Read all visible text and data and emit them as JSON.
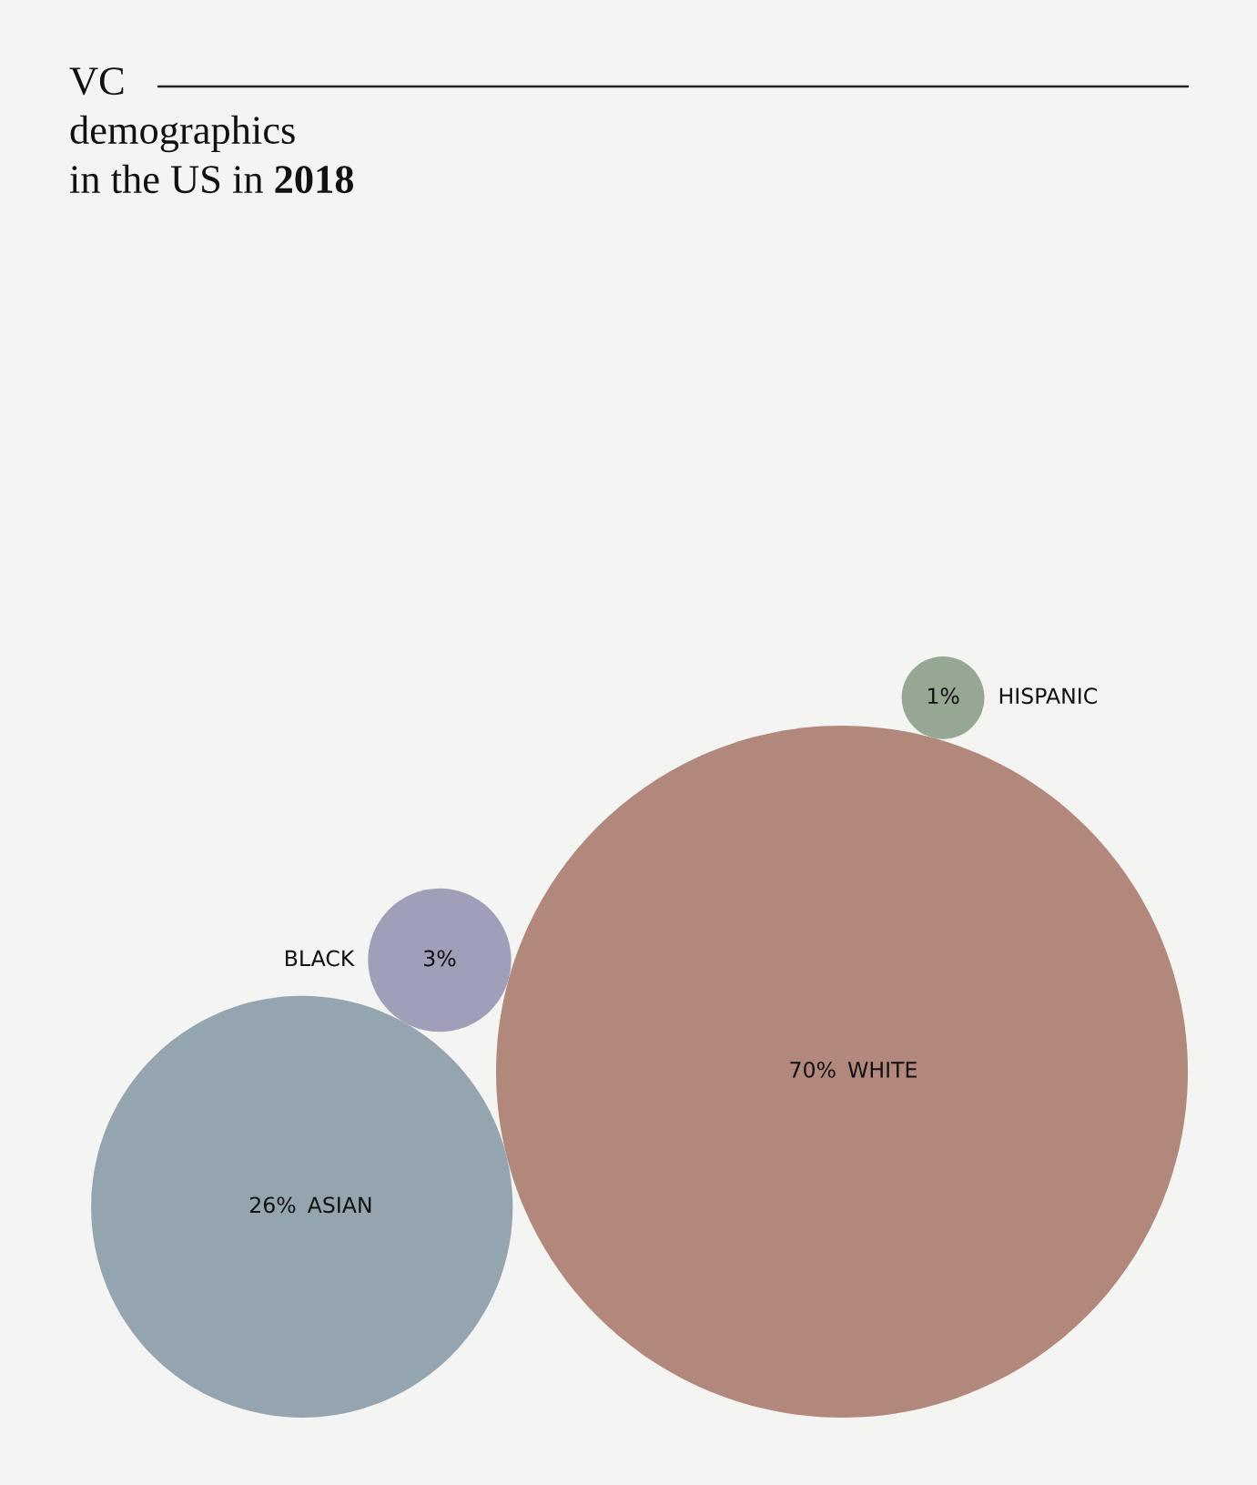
{
  "chart_data": {
    "type": "other",
    "title": "VC\ndemographics\nin the US in 2018",
    "categories": [
      "WHITE",
      "ASIAN",
      "BLACK",
      "HISPANIC"
    ],
    "values": [
      70,
      26,
      3,
      1
    ],
    "colors": [
      "#b2877c",
      "#94a5b0",
      "#a09fba",
      "#96a894"
    ],
    "value_labels": [
      "70%",
      "26%",
      "3%",
      "1%"
    ]
  }
}
